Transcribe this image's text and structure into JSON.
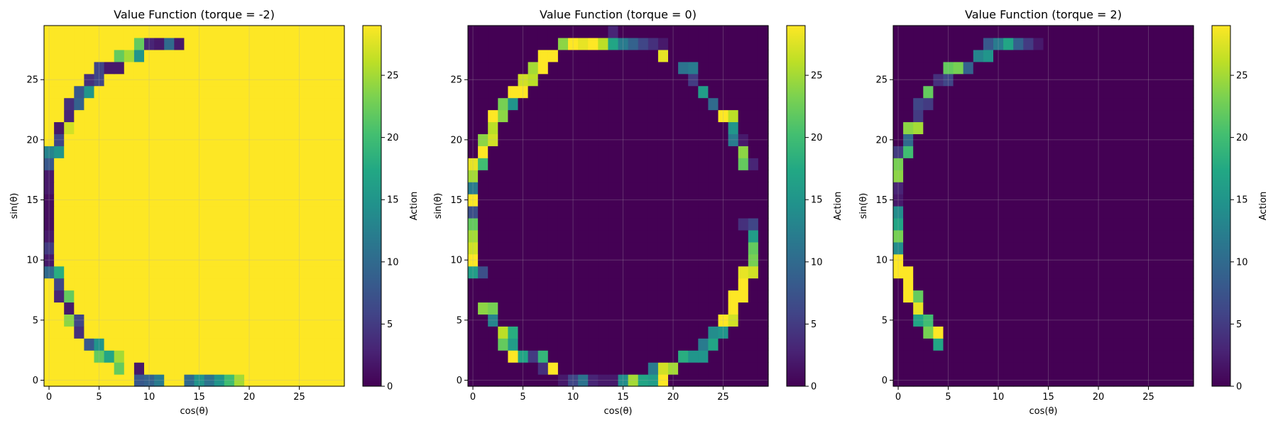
{
  "colormap": "viridis",
  "colors": {
    "min": "#440154",
    "max": "#fde725"
  },
  "chart_data": [
    {
      "type": "heatmap",
      "title": "Value Function (torque = -2)",
      "xlabel": "cos(θ)",
      "ylabel": "sin(θ)",
      "colorbar_label": "Action",
      "xticks": [
        0,
        5,
        10,
        15,
        20,
        25
      ],
      "yticks": [
        0,
        5,
        10,
        15,
        20,
        25
      ],
      "colorbar_ticks": [
        0,
        5,
        10,
        15,
        20,
        25
      ],
      "grid_size": [
        30,
        30
      ],
      "value_range": [
        0,
        29
      ],
      "grid": true,
      "background_value": 29,
      "cells": [
        [
          9,
          28,
          22
        ],
        [
          10,
          28,
          3
        ],
        [
          11,
          28,
          2
        ],
        [
          12,
          28,
          10
        ],
        [
          13,
          28,
          2
        ],
        [
          7,
          27,
          22
        ],
        [
          8,
          27,
          25
        ],
        [
          9,
          27,
          15
        ],
        [
          5,
          26,
          6
        ],
        [
          6,
          26,
          2
        ],
        [
          7,
          26,
          2
        ],
        [
          4,
          25,
          4
        ],
        [
          5,
          25,
          6
        ],
        [
          3,
          24,
          8
        ],
        [
          4,
          24,
          15
        ],
        [
          2,
          23,
          4
        ],
        [
          3,
          23,
          9
        ],
        [
          2,
          22,
          3
        ],
        [
          1,
          21,
          2
        ],
        [
          2,
          21,
          27
        ],
        [
          1,
          20,
          6
        ],
        [
          0,
          19,
          13
        ],
        [
          1,
          19,
          15
        ],
        [
          0,
          18,
          8
        ],
        [
          0,
          17,
          2
        ],
        [
          0,
          16,
          2
        ],
        [
          0,
          15,
          1
        ],
        [
          0,
          14,
          1
        ],
        [
          0,
          13,
          1
        ],
        [
          0,
          12,
          2
        ],
        [
          0,
          11,
          5
        ],
        [
          0,
          10,
          2
        ],
        [
          0,
          9,
          10
        ],
        [
          1,
          9,
          18
        ],
        [
          1,
          8,
          6
        ],
        [
          1,
          7,
          3
        ],
        [
          2,
          7,
          22
        ],
        [
          2,
          6,
          2
        ],
        [
          2,
          5,
          24
        ],
        [
          3,
          5,
          6
        ],
        [
          3,
          4,
          4
        ],
        [
          4,
          3,
          8
        ],
        [
          5,
          3,
          15
        ],
        [
          5,
          2,
          22
        ],
        [
          6,
          2,
          17
        ],
        [
          7,
          2,
          25
        ],
        [
          7,
          1,
          22
        ],
        [
          9,
          1,
          2
        ],
        [
          9,
          0,
          8
        ],
        [
          10,
          0,
          9
        ],
        [
          11,
          0,
          12
        ],
        [
          14,
          0,
          10
        ],
        [
          15,
          0,
          15
        ],
        [
          16,
          0,
          11
        ],
        [
          17,
          0,
          15
        ],
        [
          18,
          0,
          20
        ],
        [
          19,
          0,
          25
        ]
      ]
    },
    {
      "type": "heatmap",
      "title": "Value Function (torque = 0)",
      "xlabel": "cos(θ)",
      "ylabel": "sin(θ)",
      "colorbar_label": "Action",
      "xticks": [
        0,
        5,
        10,
        15,
        20,
        25
      ],
      "yticks": [
        0,
        5,
        10,
        15,
        20,
        25
      ],
      "colorbar_ticks": [
        0,
        5,
        10,
        15,
        20,
        25
      ],
      "grid_size": [
        30,
        30
      ],
      "value_range": [
        0,
        29
      ],
      "grid": true,
      "background_value": 0,
      "cells": [
        [
          14,
          29,
          3
        ],
        [
          9,
          28,
          24
        ],
        [
          10,
          28,
          29
        ],
        [
          11,
          28,
          28
        ],
        [
          12,
          28,
          29
        ],
        [
          13,
          28,
          26
        ],
        [
          14,
          28,
          17
        ],
        [
          15,
          28,
          12
        ],
        [
          16,
          28,
          9
        ],
        [
          17,
          28,
          6
        ],
        [
          18,
          28,
          4
        ],
        [
          19,
          28,
          2
        ],
        [
          7,
          27,
          29
        ],
        [
          8,
          27,
          29
        ],
        [
          19,
          27,
          28
        ],
        [
          6,
          26,
          25
        ],
        [
          7,
          26,
          29
        ],
        [
          21,
          26,
          11
        ],
        [
          22,
          26,
          12
        ],
        [
          5,
          25,
          27
        ],
        [
          6,
          25,
          26
        ],
        [
          22,
          25,
          5
        ],
        [
          4,
          24,
          29
        ],
        [
          5,
          24,
          29
        ],
        [
          23,
          24,
          16
        ],
        [
          3,
          23,
          23
        ],
        [
          4,
          23,
          15
        ],
        [
          24,
          23,
          10
        ],
        [
          2,
          22,
          29
        ],
        [
          3,
          22,
          24
        ],
        [
          25,
          22,
          29
        ],
        [
          26,
          22,
          26
        ],
        [
          2,
          21,
          26
        ],
        [
          26,
          21,
          15
        ],
        [
          1,
          20,
          24
        ],
        [
          2,
          20,
          27
        ],
        [
          26,
          20,
          12
        ],
        [
          27,
          20,
          2
        ],
        [
          1,
          19,
          29
        ],
        [
          27,
          19,
          24
        ],
        [
          0,
          18,
          28
        ],
        [
          1,
          18,
          20
        ],
        [
          27,
          18,
          22
        ],
        [
          28,
          18,
          3
        ],
        [
          0,
          17,
          25
        ],
        [
          0,
          16,
          12
        ],
        [
          0,
          15,
          29
        ],
        [
          0,
          14,
          7
        ],
        [
          0,
          13,
          22
        ],
        [
          27,
          13,
          4
        ],
        [
          28,
          13,
          6
        ],
        [
          0,
          12,
          25
        ],
        [
          28,
          12,
          16
        ],
        [
          0,
          11,
          27
        ],
        [
          28,
          11,
          22
        ],
        [
          0,
          10,
          29
        ],
        [
          28,
          10,
          23
        ],
        [
          0,
          9,
          16
        ],
        [
          1,
          9,
          7
        ],
        [
          27,
          9,
          28
        ],
        [
          28,
          9,
          27
        ],
        [
          27,
          8,
          29
        ],
        [
          26,
          7,
          29
        ],
        [
          27,
          7,
          29
        ],
        [
          1,
          6,
          24
        ],
        [
          2,
          6,
          23
        ],
        [
          26,
          6,
          29
        ],
        [
          2,
          5,
          13
        ],
        [
          25,
          5,
          29
        ],
        [
          26,
          5,
          27
        ],
        [
          3,
          4,
          26
        ],
        [
          4,
          4,
          18
        ],
        [
          24,
          4,
          14
        ],
        [
          25,
          4,
          15
        ],
        [
          3,
          3,
          22
        ],
        [
          4,
          3,
          16
        ],
        [
          23,
          3,
          12
        ],
        [
          24,
          3,
          17
        ],
        [
          4,
          2,
          29
        ],
        [
          5,
          2,
          17
        ],
        [
          6,
          2,
          5
        ],
        [
          7,
          2,
          19
        ],
        [
          21,
          2,
          18
        ],
        [
          22,
          2,
          15
        ],
        [
          23,
          2,
          15
        ],
        [
          7,
          1,
          4
        ],
        [
          8,
          1,
          29
        ],
        [
          18,
          1,
          12
        ],
        [
          19,
          1,
          27
        ],
        [
          20,
          1,
          25
        ],
        [
          9,
          0,
          2
        ],
        [
          10,
          0,
          6
        ],
        [
          11,
          0,
          11
        ],
        [
          12,
          0,
          3
        ],
        [
          13,
          0,
          2
        ],
        [
          14,
          0,
          2
        ],
        [
          15,
          0,
          14
        ],
        [
          16,
          0,
          25
        ],
        [
          17,
          0,
          17
        ],
        [
          18,
          0,
          16
        ],
        [
          19,
          0,
          29
        ]
      ]
    },
    {
      "type": "heatmap",
      "title": "Value Function (torque = 2)",
      "xlabel": "cos(θ)",
      "ylabel": "sin(θ)",
      "colorbar_label": "Action",
      "xticks": [
        0,
        5,
        10,
        15,
        20,
        25
      ],
      "yticks": [
        0,
        5,
        10,
        15,
        20,
        25
      ],
      "colorbar_ticks": [
        0,
        5,
        10,
        15,
        20,
        25
      ],
      "grid_size": [
        30,
        30
      ],
      "value_range": [
        0,
        29
      ],
      "grid": true,
      "background_value": 0,
      "cells": [
        [
          9,
          28,
          8
        ],
        [
          10,
          28,
          12
        ],
        [
          11,
          28,
          17
        ],
        [
          12,
          28,
          9
        ],
        [
          13,
          28,
          5
        ],
        [
          14,
          28,
          2
        ],
        [
          8,
          27,
          13
        ],
        [
          9,
          27,
          15
        ],
        [
          5,
          26,
          22
        ],
        [
          6,
          26,
          23
        ],
        [
          7,
          26,
          9
        ],
        [
          4,
          25,
          4
        ],
        [
          5,
          25,
          6
        ],
        [
          3,
          24,
          22
        ],
        [
          2,
          23,
          6
        ],
        [
          3,
          23,
          5
        ],
        [
          2,
          22,
          5
        ],
        [
          1,
          21,
          24
        ],
        [
          2,
          21,
          25
        ],
        [
          1,
          20,
          10
        ],
        [
          0,
          19,
          5
        ],
        [
          1,
          19,
          20
        ],
        [
          0,
          18,
          23
        ],
        [
          0,
          17,
          24
        ],
        [
          0,
          16,
          3
        ],
        [
          0,
          15,
          2
        ],
        [
          0,
          14,
          14
        ],
        [
          0,
          13,
          17
        ],
        [
          0,
          12,
          23
        ],
        [
          0,
          11,
          14
        ],
        [
          0,
          10,
          29
        ],
        [
          0,
          9,
          29
        ],
        [
          1,
          9,
          29
        ],
        [
          1,
          8,
          29
        ],
        [
          1,
          7,
          29
        ],
        [
          2,
          7,
          22
        ],
        [
          2,
          6,
          28
        ],
        [
          2,
          5,
          17
        ],
        [
          3,
          5,
          20
        ],
        [
          3,
          4,
          23
        ],
        [
          4,
          4,
          29
        ],
        [
          4,
          3,
          17
        ]
      ]
    }
  ]
}
